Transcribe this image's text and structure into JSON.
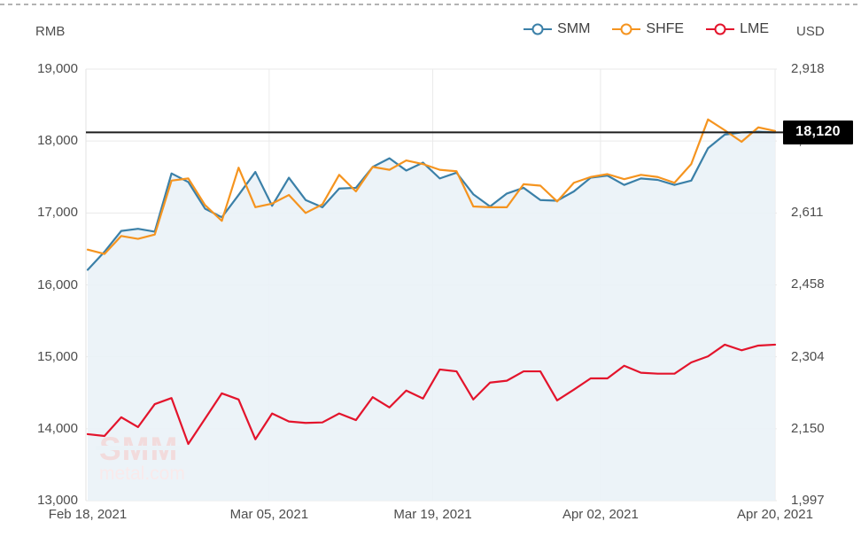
{
  "left_axis": {
    "unit": "RMB",
    "ticks": [
      {
        "label": "19,000",
        "value": 19000
      },
      {
        "label": "18,000",
        "value": 18000
      },
      {
        "label": "17,000",
        "value": 17000
      },
      {
        "label": "16,000",
        "value": 16000
      },
      {
        "label": "15,000",
        "value": 15000
      },
      {
        "label": "14,000",
        "value": 14000
      },
      {
        "label": "13,000",
        "value": 13000
      }
    ]
  },
  "right_axis": {
    "unit": "USD",
    "ticks": [
      {
        "label": "2,918",
        "value": 2918
      },
      {
        "label": "2,765",
        "value": 2765
      },
      {
        "label": "2,611",
        "value": 2611
      },
      {
        "label": "2,458",
        "value": 2458
      },
      {
        "label": "2,304",
        "value": 2304
      },
      {
        "label": "2,150",
        "value": 2150
      },
      {
        "label": "1,997",
        "value": 1997
      }
    ]
  },
  "x_axis": {
    "ticks": [
      {
        "label": "Feb 18, 2021",
        "pos": 0
      },
      {
        "label": "Mar 05, 2021",
        "pos": 0.264
      },
      {
        "label": "Mar 19, 2021",
        "pos": 0.502
      },
      {
        "label": "Apr 02, 2021",
        "pos": 0.746
      },
      {
        "label": "Apr 20, 2021",
        "pos": 1
      }
    ]
  },
  "legend": [
    {
      "name": "SMM",
      "color": "#3b80a8"
    },
    {
      "name": "SHFE",
      "color": "#f5941f"
    },
    {
      "name": "LME",
      "color": "#e3142c"
    }
  ],
  "marker_line": {
    "value_label": "18,120",
    "rmb_value": 18120,
    "line_color": "#1f1f1f",
    "badge_bg": "#000000",
    "badge_text_color": "#ffffff"
  },
  "watermark": {
    "title": "SMM",
    "subtitle": "metal.com",
    "title_color": "#f2dbdc",
    "subtitle_color": "#f9eaeb"
  },
  "style": {
    "grid_color": "#eaeaea",
    "area_fill": "#eaf2f7"
  },
  "chart_data": {
    "type": "line",
    "title": "",
    "x_range": [
      "Feb 18, 2021",
      "Apr 20, 2021"
    ],
    "x_tick_labels": [
      "Feb 18, 2021",
      "Mar 05, 2021",
      "Mar 19, 2021",
      "Apr 02, 2021",
      "Apr 20, 2021"
    ],
    "left_axis_label": "RMB",
    "right_axis_label": "USD",
    "left_axis_range": [
      13000,
      19000
    ],
    "right_axis_range": [
      1997,
      2918
    ],
    "grid": true,
    "legend_position": "top-right",
    "current_value_marker": {
      "series": "SMM",
      "value": 18120
    },
    "series": [
      {
        "name": "SMM",
        "axis": "left",
        "unit": "RMB",
        "color": "#3b80a8",
        "area": true,
        "values": [
          16210,
          16460,
          16750,
          16780,
          16740,
          17550,
          17430,
          17060,
          16940,
          17250,
          17570,
          17100,
          17490,
          17180,
          17080,
          17340,
          17350,
          17640,
          17760,
          17590,
          17700,
          17480,
          17560,
          17260,
          17090,
          17270,
          17350,
          17180,
          17170,
          17300,
          17490,
          17520,
          17390,
          17480,
          17460,
          17390,
          17450,
          17900,
          18090,
          18120,
          18130,
          18120
        ]
      },
      {
        "name": "SHFE",
        "axis": "left",
        "unit": "RMB",
        "color": "#f5941f",
        "area": false,
        "values": [
          16490,
          16430,
          16680,
          16640,
          16700,
          17450,
          17480,
          17110,
          16890,
          17630,
          17080,
          17130,
          17250,
          17000,
          17120,
          17530,
          17300,
          17640,
          17600,
          17730,
          17680,
          17600,
          17580,
          17090,
          17080,
          17080,
          17400,
          17380,
          17160,
          17420,
          17500,
          17540,
          17470,
          17530,
          17500,
          17420,
          17680,
          18300,
          18150,
          17990,
          18190,
          18140
        ]
      },
      {
        "name": "LME",
        "axis": "right",
        "unit": "USD",
        "color": "#e3142c",
        "area": false,
        "values": [
          2139,
          2135,
          2175,
          2154,
          2203,
          2216,
          2118,
          2172,
          2226,
          2213,
          2128,
          2183,
          2166,
          2163,
          2164,
          2183,
          2169,
          2218,
          2196,
          2232,
          2215,
          2277,
          2273,
          2213,
          2249,
          2253,
          2273,
          2273,
          2211,
          2234,
          2258,
          2258,
          2285,
          2270,
          2268,
          2268,
          2292,
          2305,
          2330,
          2318,
          2328,
          2330
        ]
      }
    ]
  }
}
